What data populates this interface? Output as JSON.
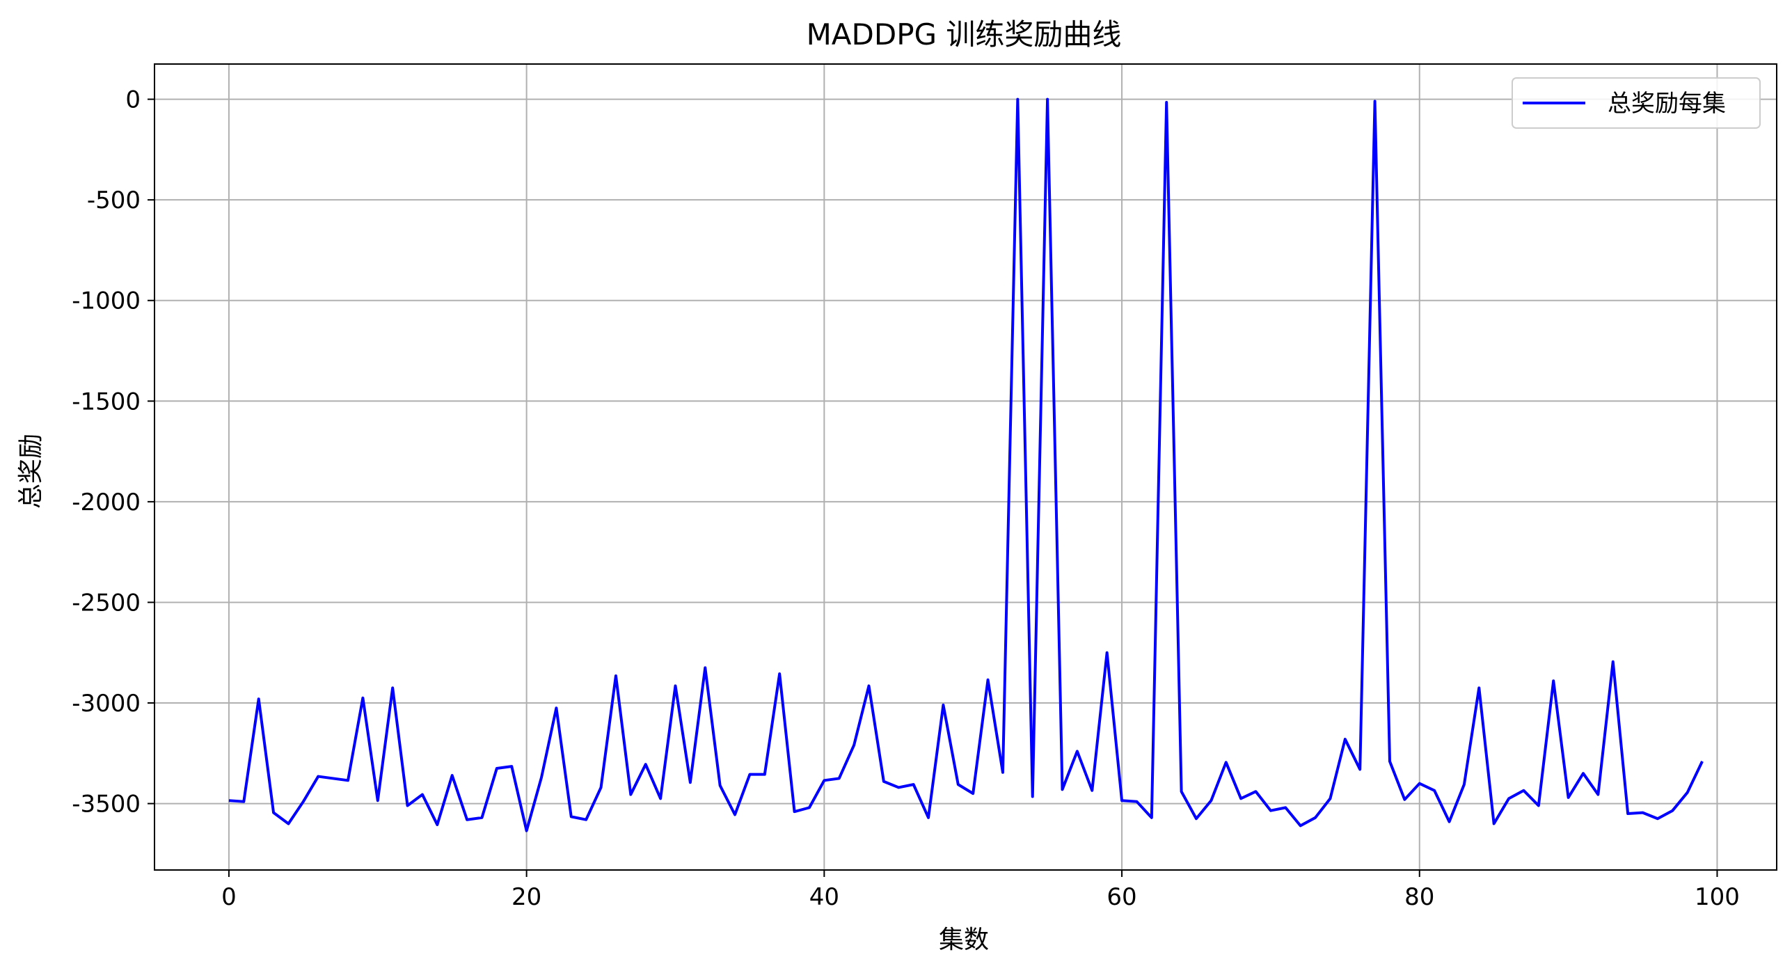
{
  "chart_data": {
    "type": "line",
    "title": "MADDPG 训练奖励曲线",
    "xlabel": "集数",
    "ylabel": "总奖励",
    "xlim": [
      -5,
      104
    ],
    "ylim": [
      -3830,
      175
    ],
    "xticks": [
      0,
      20,
      40,
      60,
      80,
      100
    ],
    "yticks": [
      0,
      -500,
      -1000,
      -1500,
      -2000,
      -2500,
      -3000,
      -3500
    ],
    "grid": true,
    "legend_position": "top-right",
    "series": [
      {
        "name": "总奖励每集",
        "color": "#0000ff",
        "x": [
          0,
          1,
          2,
          3,
          4,
          5,
          6,
          7,
          8,
          9,
          10,
          11,
          12,
          13,
          14,
          15,
          16,
          17,
          18,
          19,
          20,
          21,
          22,
          23,
          24,
          25,
          26,
          27,
          28,
          29,
          30,
          31,
          32,
          33,
          34,
          35,
          36,
          37,
          38,
          39,
          40,
          41,
          42,
          43,
          44,
          45,
          46,
          47,
          48,
          49,
          50,
          51,
          52,
          53,
          54,
          55,
          56,
          57,
          58,
          59,
          60,
          61,
          62,
          63,
          64,
          65,
          66,
          67,
          68,
          69,
          70,
          71,
          72,
          73,
          74,
          75,
          76,
          77,
          78,
          79,
          80,
          81,
          82,
          83,
          84,
          85,
          86,
          87,
          88,
          89,
          90,
          91,
          92,
          93,
          94,
          95,
          96,
          97,
          98,
          99
        ],
        "values": [
          -3485,
          -3490,
          -2980,
          -3545,
          -3600,
          -3490,
          -3365,
          -3375,
          -3385,
          -2975,
          -3485,
          -2925,
          -3510,
          -3455,
          -3605,
          -3360,
          -3580,
          -3570,
          -3325,
          -3315,
          -3635,
          -3370,
          -3025,
          -3565,
          -3580,
          -3420,
          -2865,
          -3455,
          -3305,
          -3475,
          -2915,
          -3395,
          -2825,
          -3410,
          -3555,
          -3355,
          -3355,
          -2855,
          -3540,
          -3520,
          -3385,
          -3375,
          -3210,
          -2915,
          -3390,
          -3420,
          -3405,
          -3570,
          -3010,
          -3405,
          -3450,
          -2885,
          -3345,
          0,
          -3465,
          0,
          -3430,
          -3240,
          -3435,
          -2750,
          -3485,
          -3490,
          -3570,
          -15,
          -3440,
          -3575,
          -3485,
          -3295,
          -3475,
          -3440,
          -3535,
          -3520,
          -3610,
          -3570,
          -3475,
          -3180,
          -3330,
          -10,
          -3290,
          -3480,
          -3400,
          -3435,
          -3590,
          -3405,
          -2925,
          -3600,
          -3475,
          -3435,
          -3510,
          -2890,
          -3470,
          -3350,
          -3455,
          -2795,
          -3550,
          -3545,
          -3575,
          -3535,
          -3445,
          -3290
        ]
      }
    ]
  }
}
